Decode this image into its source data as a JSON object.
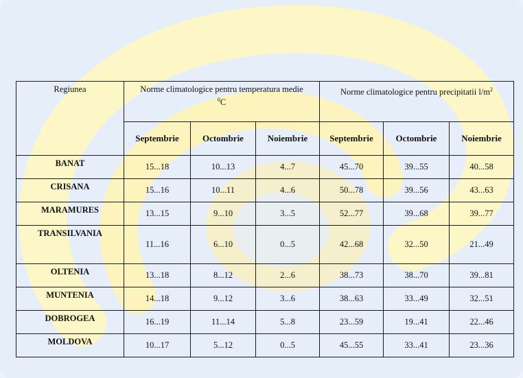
{
  "table": {
    "header": {
      "region": "Regiunea",
      "temperature_group": "Norme climatologice pentru temperatura medie",
      "temperature_unit_sup": "0",
      "temperature_unit": "C",
      "precipitation_group": "Norme climatologice pentru precipitatii l/m",
      "precipitation_unit_sup": "2",
      "months": [
        "Septembrie",
        "Octombrie",
        "Noiembrie",
        "Septembrie",
        "Octombrie",
        "Noiembrie"
      ]
    },
    "rows": [
      {
        "region": "BANAT",
        "values": [
          "15...18",
          "10...13",
          "4...7",
          "45...70",
          "39...55",
          "40...58"
        ]
      },
      {
        "region": "CRISANA",
        "values": [
          "15...16",
          "10...11",
          "4...6",
          "50...78",
          "39...56",
          "43...63"
        ]
      },
      {
        "region": "MARAMURES",
        "values": [
          "13...15",
          "9...10",
          "3...5",
          "52...77",
          "39...68",
          "39...77"
        ]
      },
      {
        "region": "TRANSILVANIA",
        "values": [
          "11...16",
          "6...10",
          "0...5",
          "42...68",
          "32...50",
          "21...49"
        ]
      },
      {
        "region": "OLTENIA",
        "values": [
          "13...18",
          "8...12",
          "2...6",
          "38...73",
          "38...70",
          "39...81"
        ]
      },
      {
        "region": "MUNTENIA",
        "values": [
          "14...18",
          "9...12",
          "3...6",
          "38...63",
          "33...49",
          "32...51"
        ]
      },
      {
        "region": "DOBROGEA",
        "values": [
          "16...19",
          "11...14",
          "5...8",
          "23...59",
          "19...41",
          "22...46"
        ]
      },
      {
        "region": "MOLDOVA",
        "values": [
          "10...17",
          "5...12",
          "0...5",
          "45...55",
          "33...41",
          "23...36"
        ]
      }
    ]
  }
}
